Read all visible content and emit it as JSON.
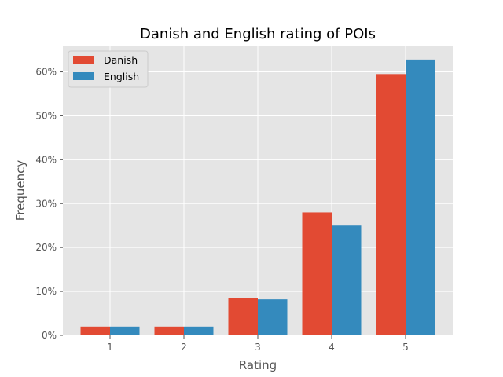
{
  "chart_data": {
    "type": "bar",
    "title": "Danish and English rating of POIs",
    "xlabel": "Rating",
    "ylabel": "Frequency",
    "categories": [
      "1",
      "2",
      "3",
      "4",
      "5"
    ],
    "series": [
      {
        "name": "Danish",
        "color": "#E24A33",
        "values": [
          0.02,
          0.02,
          0.085,
          0.28,
          0.595
        ]
      },
      {
        "name": "English",
        "color": "#348ABD",
        "values": [
          0.02,
          0.02,
          0.082,
          0.25,
          0.628
        ]
      }
    ],
    "ylim": [
      0,
      0.66
    ],
    "yticks": [
      0,
      0.1,
      0.2,
      0.3,
      0.4,
      0.5,
      0.6
    ],
    "ytick_labels": [
      "0%",
      "10%",
      "20%",
      "30%",
      "40%",
      "50%",
      "60%"
    ],
    "grid": true,
    "legend_position": "top-left",
    "background_color": "#E5E5E5",
    "grid_color": "#FFFFFF"
  }
}
